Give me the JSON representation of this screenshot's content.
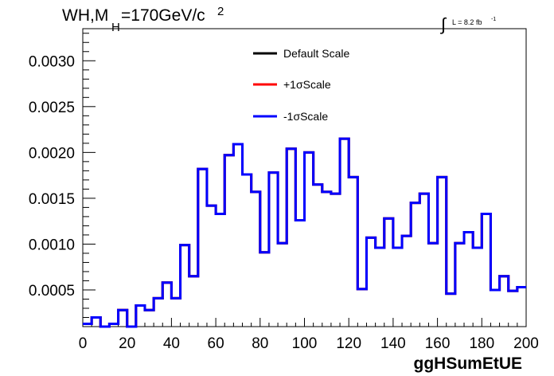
{
  "title_main": "WH,M",
  "title_sub": "H",
  "title_rest": "=170GeV/c",
  "title_sup": "2",
  "lumi_label": "L = 8.2 fb",
  "lumi_sup": "-1",
  "lumi_integral": "∫",
  "chart_data": {
    "type": "line",
    "xlabel": "ggHSumEtUE",
    "ylabel": "",
    "xlim": [
      0,
      200
    ],
    "ylim": [
      0.0001,
      0.00335
    ],
    "x_ticks": [
      0,
      20,
      40,
      60,
      80,
      100,
      120,
      140,
      160,
      180,
      200
    ],
    "x_tick_labels": [
      "0",
      "20",
      "40",
      "60",
      "80",
      "100",
      "120",
      "140",
      "160",
      "180",
      "200"
    ],
    "y_ticks": [
      0.0005,
      0.001,
      0.0015,
      0.002,
      0.0025,
      0.003
    ],
    "y_tick_labels": [
      "0.0005",
      "0.0010",
      "0.0015",
      "0.0020",
      "0.0025",
      "0.0030"
    ],
    "bin_edges": [
      0,
      4,
      8,
      12,
      16,
      20,
      24,
      28,
      32,
      36,
      40,
      44,
      48,
      52,
      56,
      60,
      64,
      68,
      72,
      76,
      80,
      84,
      88,
      92,
      96,
      100,
      104,
      108,
      112,
      116,
      120,
      124,
      128,
      132,
      136,
      140,
      144,
      148,
      152,
      156,
      160,
      164,
      168,
      172,
      176,
      180,
      184,
      188,
      192,
      196,
      200
    ],
    "series": [
      {
        "name": "Default Scale",
        "color": "#000000",
        "values": [
          0.00013,
          0.0002,
          8e-05,
          0.00013,
          0.00028,
          0.0001,
          0.00033,
          0.00028,
          0.00041,
          0.00058,
          0.00041,
          0.00099,
          0.00065,
          0.00182,
          0.00142,
          0.00133,
          0.00197,
          0.00209,
          0.00176,
          0.00157,
          0.00091,
          0.00178,
          0.00101,
          0.00204,
          0.00126,
          0.002,
          0.00165,
          0.00157,
          0.00155,
          0.00215,
          0.00173,
          0.00051,
          0.00107,
          0.00096,
          0.00128,
          0.00096,
          0.00109,
          0.00145,
          0.00155,
          0.00101,
          0.00173,
          0.00046,
          0.00101,
          0.00113,
          0.00096,
          0.00133,
          0.0005,
          0.00065,
          0.00049,
          0.00053
        ]
      },
      {
        "name": "+1σScale",
        "color": "#ff0000",
        "values": [
          0.00013,
          0.0002,
          8e-05,
          0.00013,
          0.00028,
          0.0001,
          0.00033,
          0.00028,
          0.00041,
          0.00058,
          0.00041,
          0.00099,
          0.00065,
          0.00182,
          0.00142,
          0.00133,
          0.00197,
          0.00209,
          0.00176,
          0.00157,
          0.00091,
          0.00178,
          0.00101,
          0.00204,
          0.00126,
          0.002,
          0.00165,
          0.00157,
          0.00155,
          0.00215,
          0.00173,
          0.00051,
          0.00107,
          0.00096,
          0.00128,
          0.00096,
          0.00109,
          0.00145,
          0.00155,
          0.00101,
          0.00173,
          0.00046,
          0.00101,
          0.00113,
          0.00096,
          0.00133,
          0.0005,
          0.00065,
          0.00049,
          0.00053
        ]
      },
      {
        "name": "-1σScale",
        "color": "#0000ff",
        "values": [
          0.00013,
          0.0002,
          8e-05,
          0.00013,
          0.00028,
          0.0001,
          0.00033,
          0.00028,
          0.00041,
          0.00058,
          0.00041,
          0.00099,
          0.00065,
          0.00182,
          0.00142,
          0.00133,
          0.00197,
          0.00209,
          0.00176,
          0.00157,
          0.00091,
          0.00178,
          0.00101,
          0.00204,
          0.00126,
          0.002,
          0.00165,
          0.00157,
          0.00155,
          0.00215,
          0.00173,
          0.00051,
          0.00107,
          0.00096,
          0.00128,
          0.00096,
          0.00109,
          0.00145,
          0.00155,
          0.00101,
          0.00173,
          0.00046,
          0.00101,
          0.00113,
          0.00096,
          0.00133,
          0.0005,
          0.00065,
          0.00049,
          0.00053
        ]
      }
    ],
    "legend_position": "top-center",
    "grid": false
  }
}
